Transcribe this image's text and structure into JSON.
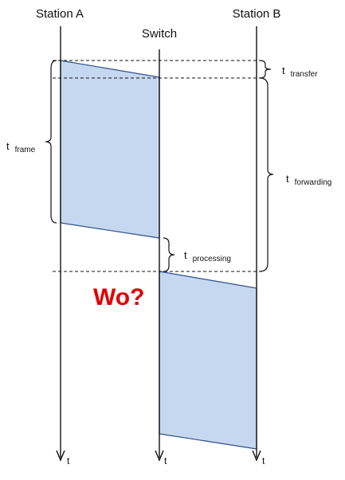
{
  "stations": {
    "a": "Station A",
    "switch": "Switch",
    "b": "Station B"
  },
  "time_axis_label": "t",
  "intervals": {
    "frame": {
      "symbol": "t",
      "subscript": "frame"
    },
    "transfer": {
      "symbol": "t",
      "subscript": "transfer"
    },
    "forwarding": {
      "symbol": "t",
      "subscript": "forwarding"
    },
    "processing": {
      "symbol": "t",
      "subscript": "processing"
    }
  },
  "question": "Wo?",
  "colors": {
    "frame_fill": "#c6d8ef",
    "frame_stroke": "#2f4f86",
    "line": "#111111",
    "question": "#e00000"
  }
}
